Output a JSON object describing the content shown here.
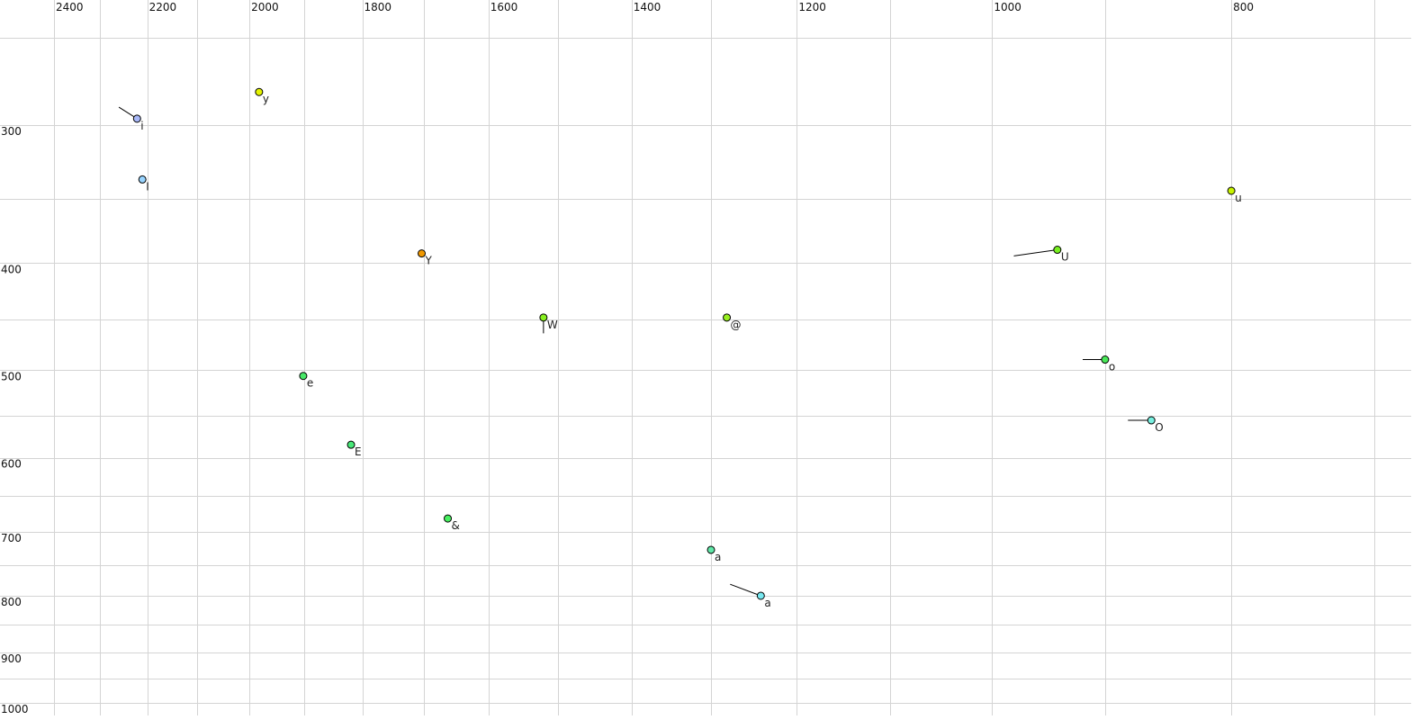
{
  "chart_data": {
    "type": "scatter",
    "title": "",
    "xlabel": "",
    "ylabel": "",
    "x_scale": "log",
    "y_scale": "log",
    "x_reversed": true,
    "xlim": [
      2400,
      700
    ],
    "ylim": [
      250,
      1040
    ],
    "grid": true,
    "x_ticks": [
      2400,
      2200,
      2000,
      1800,
      1600,
      1400,
      1200,
      1000,
      800
    ],
    "x_gridlines": [
      2400,
      2300,
      2200,
      2100,
      2000,
      1900,
      1800,
      1700,
      1600,
      1500,
      1400,
      1300,
      1200,
      1100,
      1000,
      900,
      800,
      700
    ],
    "y_ticks": [
      300,
      400,
      500,
      600,
      700,
      800,
      900,
      1000
    ],
    "y_gridlines": [
      250,
      300,
      350,
      400,
      450,
      500,
      550,
      600,
      650,
      700,
      750,
      800,
      850,
      900,
      950,
      1000
    ],
    "points": [
      {
        "label": "i",
        "f2": 2221,
        "f1": 296,
        "trail": [
          2259,
          289
        ],
        "color": "#a8b8f8"
      },
      {
        "label": "I",
        "f2": 2210,
        "f1": 336,
        "color": "#98d4ff"
      },
      {
        "label": "y",
        "f2": 1982,
        "f1": 280,
        "color": "#e4f400"
      },
      {
        "label": "Y",
        "f2": 1703,
        "f1": 392,
        "color": "#f09800"
      },
      {
        "label": "W",
        "f2": 1520,
        "f1": 448,
        "trail": [
          1520,
          463
        ],
        "color": "#88f020"
      },
      {
        "label": "@",
        "f2": 1281,
        "f1": 448,
        "color": "#98f020"
      },
      {
        "label": "e",
        "f2": 1902,
        "f1": 506,
        "color": "#48e868"
      },
      {
        "label": "E",
        "f2": 1819,
        "f1": 584,
        "color": "#48e878"
      },
      {
        "label": "&",
        "f2": 1662,
        "f1": 681,
        "color": "#48f060"
      },
      {
        "label": "a",
        "f2": 1300,
        "f1": 727,
        "color": "#60e8a8",
        "label_color": "#707090"
      },
      {
        "label": "a",
        "f2": 1241,
        "f1": 800,
        "trail": [
          1277,
          781
        ],
        "color": "#78e8f0"
      },
      {
        "label": "U",
        "f2": 941,
        "f1": 389,
        "trail": [
          980,
          394
        ],
        "color": "#78f020"
      },
      {
        "label": "u",
        "f2": 800,
        "f1": 344,
        "color": "#c8f400"
      },
      {
        "label": "o",
        "f2": 900,
        "f1": 489,
        "trail": [
          919,
          489
        ],
        "color": "#48e858"
      },
      {
        "label": "O",
        "f2": 862,
        "f1": 555,
        "trail": [
          881,
          555
        ],
        "color": "#78f0e0"
      }
    ]
  }
}
